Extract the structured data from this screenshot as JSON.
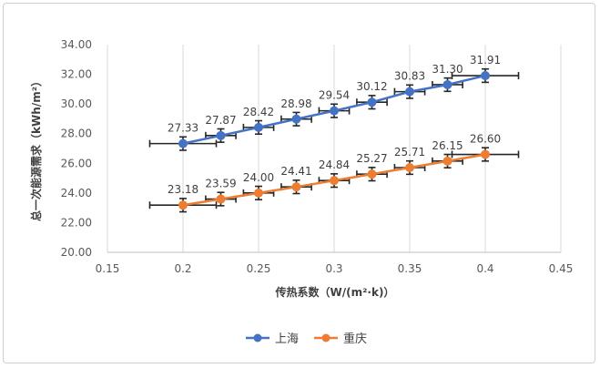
{
  "chart_data": {
    "type": "scatter",
    "title": "",
    "xlabel": "传热系数（W/(m²·k)）",
    "ylabel": "总一次能源需求（kWh/m²）",
    "xlim": [
      0.15,
      0.45
    ],
    "ylim": [
      20,
      34
    ],
    "x_ticks": [
      "0.15",
      "0.2",
      "0.25",
      "0.3",
      "0.35",
      "0.4",
      "0.45"
    ],
    "y_ticks": [
      "20.00",
      "22.00",
      "24.00",
      "26.00",
      "28.00",
      "30.00",
      "32.00",
      "34.00"
    ],
    "grid": "vertical",
    "legend_position": "bottom",
    "x": [
      0.2,
      0.225,
      0.25,
      0.275,
      0.3,
      0.325,
      0.35,
      0.375,
      0.4
    ],
    "x_error": [
      0.022,
      0.01,
      0.01,
      0.01,
      0.01,
      0.01,
      0.01,
      0.01,
      0.022
    ],
    "series": [
      {
        "name": "上海",
        "color": "#4472c4",
        "values": [
          27.33,
          27.87,
          28.42,
          28.98,
          29.54,
          30.12,
          30.83,
          31.3,
          31.91
        ],
        "labels": [
          "27.33",
          "27.87",
          "28.42",
          "28.98",
          "29.54",
          "30.12",
          "30.83",
          "31.30",
          "31.91"
        ],
        "y_error": 0.45
      },
      {
        "name": "重庆",
        "color": "#ed7d31",
        "values": [
          23.18,
          23.59,
          24.0,
          24.41,
          24.84,
          25.27,
          25.71,
          26.15,
          26.6
        ],
        "labels": [
          "23.18",
          "23.59",
          "24.00",
          "24.41",
          "24.84",
          "25.27",
          "25.71",
          "26.15",
          "26.60"
        ],
        "y_error": 0.45
      }
    ]
  }
}
